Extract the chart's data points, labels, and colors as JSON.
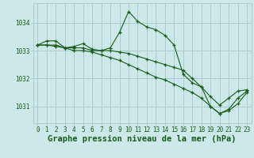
{
  "background_color": "#cce8e8",
  "grid_color": "#aacccc",
  "line_color": "#1a5c1a",
  "marker_color": "#1a5c1a",
  "xlabel": "Graphe pression niveau de la mer (hPa)",
  "xlabel_fontsize": 7.5,
  "yticks": [
    1031,
    1032,
    1033,
    1034
  ],
  "xticks": [
    0,
    1,
    2,
    3,
    4,
    5,
    6,
    7,
    8,
    9,
    10,
    11,
    12,
    13,
    14,
    15,
    16,
    17,
    18,
    19,
    20,
    21,
    22,
    23
  ],
  "ylim": [
    1030.4,
    1034.7
  ],
  "xlim": [
    -0.5,
    23.5
  ],
  "series1_x": [
    0,
    1,
    2,
    3,
    4,
    5,
    6,
    7,
    8,
    9,
    10,
    11,
    12,
    13,
    14,
    15,
    16,
    17,
    18,
    19,
    20,
    21,
    22,
    23
  ],
  "series1_y": [
    1033.2,
    1033.35,
    1033.35,
    1033.1,
    1033.15,
    1033.25,
    1033.05,
    1033.0,
    1033.1,
    1033.65,
    1034.4,
    1034.05,
    1033.85,
    1033.75,
    1033.55,
    1033.2,
    1032.15,
    1031.85,
    1031.7,
    1031.0,
    1030.75,
    1030.9,
    1031.3,
    1031.55
  ],
  "series2_x": [
    0,
    1,
    2,
    3,
    4,
    5,
    6,
    7,
    8,
    9,
    10,
    11,
    12,
    13,
    14,
    15,
    16,
    17,
    18,
    19,
    20,
    21,
    22,
    23
  ],
  "series2_y": [
    1033.2,
    1033.2,
    1033.2,
    1033.1,
    1033.1,
    1033.1,
    1033.0,
    1033.0,
    1033.0,
    1032.95,
    1032.9,
    1032.8,
    1032.7,
    1032.6,
    1032.5,
    1032.4,
    1032.3,
    1032.0,
    1031.7,
    1031.35,
    1031.05,
    1031.3,
    1031.55,
    1031.6
  ],
  "series3_x": [
    0,
    1,
    2,
    3,
    4,
    5,
    6,
    7,
    8,
    9,
    10,
    11,
    12,
    13,
    14,
    15,
    16,
    17,
    18,
    19,
    20,
    21,
    22,
    23
  ],
  "series3_y": [
    1033.2,
    1033.2,
    1033.15,
    1033.1,
    1033.0,
    1033.0,
    1032.95,
    1032.85,
    1032.75,
    1032.65,
    1032.5,
    1032.35,
    1032.2,
    1032.05,
    1031.95,
    1031.8,
    1031.65,
    1031.5,
    1031.3,
    1031.0,
    1030.75,
    1030.85,
    1031.1,
    1031.5
  ]
}
